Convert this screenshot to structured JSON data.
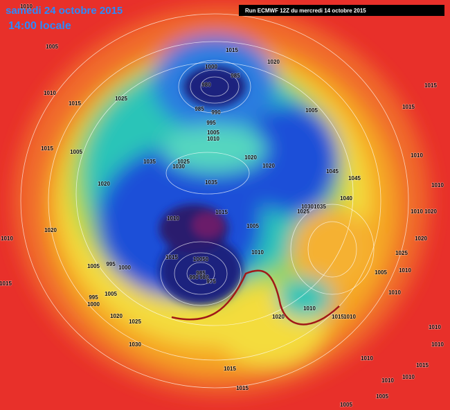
{
  "header": {
    "date": "samedi 24 octobre 2015",
    "time": "14:00 locale",
    "run": "Run ECMWF 12Z du mercredi 14 octobre 2015"
  },
  "isobar_labels": [
    1010,
    1005,
    1010,
    1015,
    1025,
    1015,
    1020,
    1000,
    985,
    980,
    985,
    990,
    995,
    1005,
    1010,
    1005,
    1015,
    1015,
    1015,
    1005,
    1035,
    1025,
    1030,
    1020,
    1020,
    1035,
    1045,
    1045,
    1020,
    1040,
    1035,
    1030,
    1025,
    1010,
    1010,
    1010,
    1020,
    1020,
    1015,
    1010,
    1005,
    1020,
    1010,
    1015,
    1010,
    10050,
    985,
    990,
    980,
    975,
    1005,
    995,
    1000,
    1015,
    1025,
    1010,
    1005,
    1010,
    1005,
    995,
    1000,
    1020,
    1025,
    1030,
    1020,
    1010,
    1015,
    1010,
    1010,
    1010,
    1015,
    1015,
    1005,
    1005,
    1010,
    1010,
    1015,
    1010
  ]
}
